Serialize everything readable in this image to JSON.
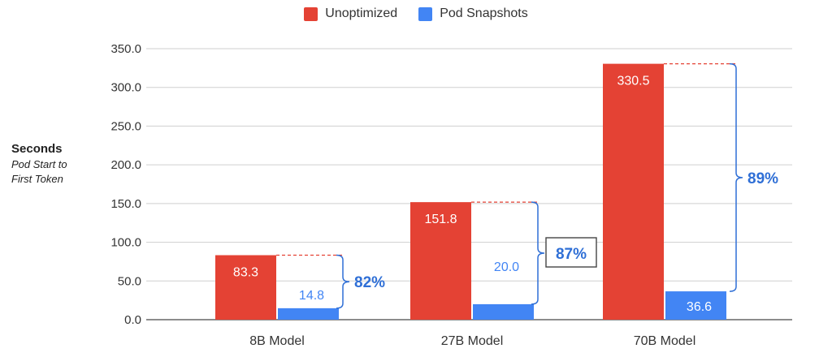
{
  "colors": {
    "unoptimized": "#e44234",
    "snapshots": "#4285f4",
    "annotation": "#2f6fd6"
  },
  "y_title": {
    "main": "Seconds",
    "sub_line1": "Pod Start to",
    "sub_line2": "First Token"
  },
  "chart_data": {
    "type": "bar",
    "categories": [
      "8B Model",
      "27B Model",
      "70B Model"
    ],
    "series": [
      {
        "name": "Unoptimized",
        "values": [
          83.3,
          151.8,
          330.5
        ]
      },
      {
        "name": "Pod Snapshots",
        "values": [
          14.8,
          20.0,
          36.6
        ]
      }
    ],
    "data_labels": [
      [
        "83.3",
        "151.8",
        "330.5"
      ],
      [
        "14.8",
        "20.0",
        "36.6"
      ]
    ],
    "reductions": [
      "82%",
      "87%",
      "89%"
    ],
    "ylim": [
      0,
      350
    ],
    "yticks": [
      0,
      50,
      100,
      150,
      200,
      250,
      300,
      350
    ],
    "ytick_labels": [
      "0.0",
      "50.0",
      "100.0",
      "150.0",
      "200.0",
      "250.0",
      "300.0",
      "350.0"
    ],
    "grid": true,
    "legend": "top-center"
  }
}
